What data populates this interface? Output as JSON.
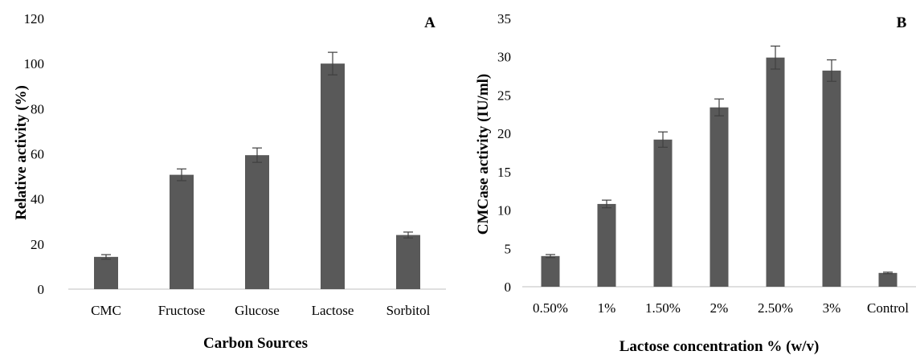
{
  "colors": {
    "bar": "#595959",
    "axis": "#bfbfbf",
    "errorbar": "#404040",
    "text": "#000000"
  },
  "chart_data": [
    {
      "type": "bar",
      "panel_label": "A",
      "title": "",
      "xlabel": "Carbon Sources",
      "ylabel": "Relative activity (%)",
      "ylim": [
        0,
        120
      ],
      "yticks": [
        "0",
        "20",
        "40",
        "60",
        "80",
        "100",
        "120"
      ],
      "grid": false,
      "categories": [
        "CMC",
        "Fructose",
        "Glucose",
        "Lactose",
        "Sorbitol"
      ],
      "values": [
        14.3,
        50.7,
        59.4,
        100,
        24.0
      ],
      "errors": [
        1.0,
        2.6,
        3.2,
        5.0,
        1.3
      ]
    },
    {
      "type": "bar",
      "panel_label": "B",
      "title": "",
      "xlabel": "Lactose concentration % (w/v)",
      "ylabel": "CMCase activity (IU/ml)",
      "ylim": [
        0,
        35
      ],
      "yticks": [
        "0",
        "5",
        "10",
        "15",
        "20",
        "25",
        "30",
        "35"
      ],
      "grid": false,
      "categories": [
        "0.50%",
        "1%",
        "1.50%",
        "2%",
        "2.50%",
        "3%",
        "Control"
      ],
      "values": [
        4.0,
        10.8,
        19.2,
        23.4,
        29.9,
        28.2,
        1.8
      ],
      "errors": [
        0.2,
        0.5,
        1.0,
        1.1,
        1.5,
        1.4,
        0.1
      ]
    }
  ]
}
